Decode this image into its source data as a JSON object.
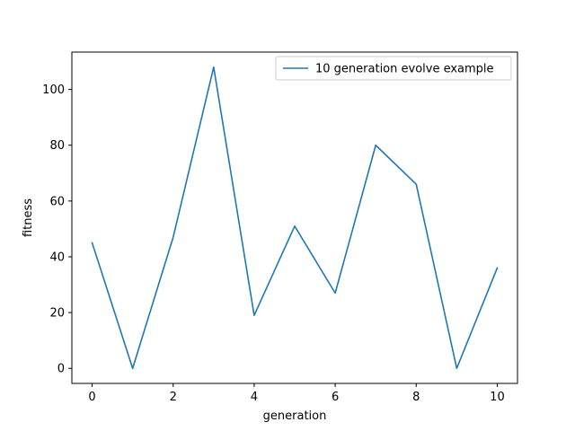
{
  "chart_data": {
    "type": "line",
    "x": [
      0,
      1,
      2,
      3,
      4,
      5,
      6,
      7,
      8,
      9,
      10
    ],
    "series": [
      {
        "name": "10 generation evolve example",
        "values": [
          45,
          0,
          47,
          108,
          19,
          51,
          27,
          80,
          66,
          0,
          36
        ],
        "color": "#1f77b4"
      }
    ],
    "xlabel": "generation",
    "ylabel": "fitness",
    "xlim": [
      -0.5,
      10.5
    ],
    "ylim": [
      -5.4,
      113.4
    ],
    "xticks": [
      0,
      2,
      4,
      6,
      8,
      10
    ],
    "yticks": [
      0,
      20,
      40,
      60,
      80,
      100
    ],
    "legend_position": "top-right",
    "grid": false
  }
}
